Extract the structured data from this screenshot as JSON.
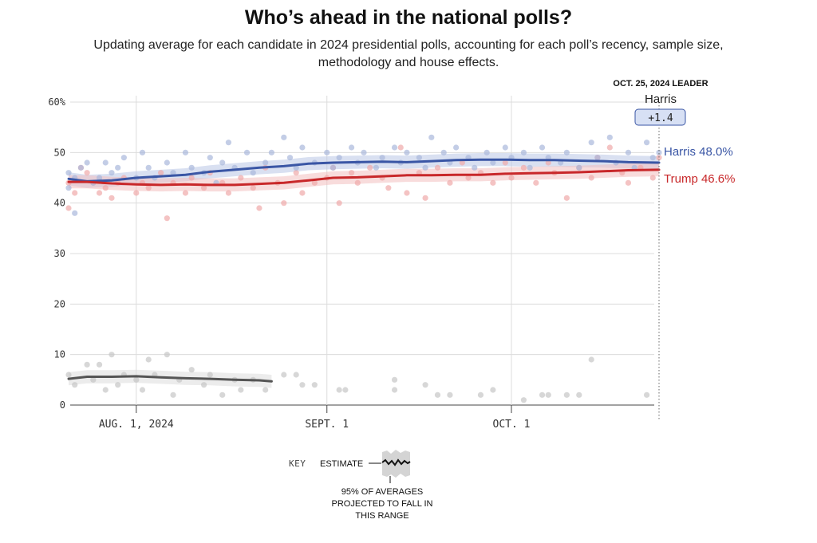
{
  "header": {
    "title": "Who’s ahead in the national polls?",
    "subtitle": "Updating average for each candidate in 2024 presidential polls, accounting for each poll’s recency, sample size, methodology and house effects."
  },
  "leader_box": {
    "date_label": "OCT. 25, 2024 LEADER",
    "name": "Harris",
    "margin": "+1.4"
  },
  "end_labels": {
    "harris": "Harris 48.0%",
    "trump": "Trump 46.6%"
  },
  "key": {
    "key_label": "KEY",
    "estimate_label": "ESTIMATE",
    "range_lines": [
      "95% OF AVERAGES",
      "PROJECTED TO FALL IN",
      "THIS RANGE"
    ]
  },
  "colors": {
    "harris": "#3a56a5",
    "trump": "#c8282a",
    "third": "#555555",
    "harris_dots": "#a9b8dc",
    "trump_dots": "#f0aaaa",
    "third_dots": "#c6c6c6",
    "grid": "#dcdcdc"
  },
  "chart_data": {
    "type": "line",
    "x_range": [
      "2024-07-21",
      "2024-10-25"
    ],
    "ylim": [
      0,
      60
    ],
    "y_ticks": [
      {
        "value": 0,
        "label": "0"
      },
      {
        "value": 10,
        "label": "10"
      },
      {
        "value": 20,
        "label": "20"
      },
      {
        "value": 30,
        "label": "30"
      },
      {
        "value": 40,
        "label": "40"
      },
      {
        "value": 50,
        "label": "50"
      },
      {
        "value": 60,
        "label": "60%"
      }
    ],
    "x_ticks": [
      {
        "date": "2024-08-01",
        "label": "AUG. 1, 2024"
      },
      {
        "date": "2024-09-01",
        "label": "SEPT. 1"
      },
      {
        "date": "2024-10-01",
        "label": "OCT. 1"
      }
    ],
    "grid": true,
    "series": [
      {
        "name": "Harris",
        "color_key": "harris",
        "points": [
          [
            "2024-07-21",
            44.8
          ],
          [
            "2024-07-24",
            44.3
          ],
          [
            "2024-07-28",
            44.5
          ],
          [
            "2024-08-01",
            45.0
          ],
          [
            "2024-08-05",
            45.3
          ],
          [
            "2024-08-09",
            45.6
          ],
          [
            "2024-08-13",
            46.2
          ],
          [
            "2024-08-17",
            46.6
          ],
          [
            "2024-08-21",
            47.0
          ],
          [
            "2024-08-25",
            47.3
          ],
          [
            "2024-08-29",
            47.8
          ],
          [
            "2024-09-02",
            48.0
          ],
          [
            "2024-09-06",
            48.1
          ],
          [
            "2024-09-10",
            48.2
          ],
          [
            "2024-09-14",
            48.1
          ],
          [
            "2024-09-18",
            48.3
          ],
          [
            "2024-09-22",
            48.5
          ],
          [
            "2024-09-26",
            48.6
          ],
          [
            "2024-09-30",
            48.6
          ],
          [
            "2024-10-04",
            48.5
          ],
          [
            "2024-10-08",
            48.5
          ],
          [
            "2024-10-12",
            48.4
          ],
          [
            "2024-10-16",
            48.3
          ],
          [
            "2024-10-20",
            48.1
          ],
          [
            "2024-10-25",
            48.0
          ]
        ]
      },
      {
        "name": "Trump",
        "color_key": "trump",
        "points": [
          [
            "2024-07-21",
            44.2
          ],
          [
            "2024-07-24",
            44.2
          ],
          [
            "2024-07-28",
            43.9
          ],
          [
            "2024-08-01",
            43.7
          ],
          [
            "2024-08-05",
            43.6
          ],
          [
            "2024-08-09",
            43.7
          ],
          [
            "2024-08-13",
            43.6
          ],
          [
            "2024-08-17",
            43.6
          ],
          [
            "2024-08-21",
            43.8
          ],
          [
            "2024-08-25",
            44.0
          ],
          [
            "2024-08-29",
            44.5
          ],
          [
            "2024-09-02",
            45.0
          ],
          [
            "2024-09-06",
            45.1
          ],
          [
            "2024-09-10",
            45.3
          ],
          [
            "2024-09-14",
            45.5
          ],
          [
            "2024-09-18",
            45.5
          ],
          [
            "2024-09-22",
            45.6
          ],
          [
            "2024-09-26",
            45.6
          ],
          [
            "2024-09-30",
            45.8
          ],
          [
            "2024-10-04",
            45.9
          ],
          [
            "2024-10-08",
            46.0
          ],
          [
            "2024-10-12",
            46.1
          ],
          [
            "2024-10-16",
            46.3
          ],
          [
            "2024-10-20",
            46.5
          ],
          [
            "2024-10-25",
            46.6
          ]
        ]
      },
      {
        "name": "",
        "color_key": "third",
        "points": [
          [
            "2024-07-21",
            5.2
          ],
          [
            "2024-07-24",
            5.6
          ],
          [
            "2024-07-28",
            5.6
          ],
          [
            "2024-08-01",
            5.7
          ],
          [
            "2024-08-05",
            5.5
          ],
          [
            "2024-08-09",
            5.3
          ],
          [
            "2024-08-13",
            5.2
          ],
          [
            "2024-08-17",
            5.0
          ],
          [
            "2024-08-21",
            4.9
          ],
          [
            "2024-08-23",
            4.7
          ]
        ]
      }
    ],
    "polls": {
      "harris": [
        [
          "2024-07-21",
          46
        ],
        [
          "2024-07-21",
          43
        ],
        [
          "2024-07-22",
          38
        ],
        [
          "2024-07-22",
          45
        ],
        [
          "2024-07-23",
          47
        ],
        [
          "2024-07-24",
          48
        ],
        [
          "2024-07-25",
          44
        ],
        [
          "2024-07-26",
          45
        ],
        [
          "2024-07-27",
          48
        ],
        [
          "2024-07-28",
          46
        ],
        [
          "2024-07-29",
          47
        ],
        [
          "2024-07-30",
          49
        ],
        [
          "2024-08-01",
          45
        ],
        [
          "2024-08-02",
          50
        ],
        [
          "2024-08-03",
          47
        ],
        [
          "2024-08-04",
          45
        ],
        [
          "2024-08-06",
          48
        ],
        [
          "2024-08-07",
          46
        ],
        [
          "2024-08-09",
          50
        ],
        [
          "2024-08-10",
          47
        ],
        [
          "2024-08-12",
          46
        ],
        [
          "2024-08-13",
          49
        ],
        [
          "2024-08-14",
          44
        ],
        [
          "2024-08-15",
          48
        ],
        [
          "2024-08-16",
          52
        ],
        [
          "2024-08-17",
          47
        ],
        [
          "2024-08-19",
          50
        ],
        [
          "2024-08-20",
          46
        ],
        [
          "2024-08-22",
          48
        ],
        [
          "2024-08-23",
          50
        ],
        [
          "2024-08-25",
          53
        ],
        [
          "2024-08-26",
          49
        ],
        [
          "2024-08-27",
          47
        ],
        [
          "2024-08-28",
          51
        ],
        [
          "2024-08-30",
          48
        ],
        [
          "2024-09-01",
          50
        ],
        [
          "2024-09-02",
          47
        ],
        [
          "2024-09-03",
          49
        ],
        [
          "2024-09-05",
          51
        ],
        [
          "2024-09-06",
          48
        ],
        [
          "2024-09-07",
          50
        ],
        [
          "2024-09-09",
          47
        ],
        [
          "2024-09-10",
          49
        ],
        [
          "2024-09-12",
          51
        ],
        [
          "2024-09-13",
          48
        ],
        [
          "2024-09-14",
          50
        ],
        [
          "2024-09-16",
          49
        ],
        [
          "2024-09-17",
          47
        ],
        [
          "2024-09-18",
          53
        ],
        [
          "2024-09-20",
          50
        ],
        [
          "2024-09-21",
          48
        ],
        [
          "2024-09-22",
          51
        ],
        [
          "2024-09-24",
          49
        ],
        [
          "2024-09-25",
          47
        ],
        [
          "2024-09-27",
          50
        ],
        [
          "2024-09-28",
          48
        ],
        [
          "2024-09-30",
          51
        ],
        [
          "2024-10-01",
          49
        ],
        [
          "2024-10-03",
          50
        ],
        [
          "2024-10-04",
          47
        ],
        [
          "2024-10-06",
          51
        ],
        [
          "2024-10-07",
          49
        ],
        [
          "2024-10-09",
          48
        ],
        [
          "2024-10-10",
          50
        ],
        [
          "2024-10-12",
          47
        ],
        [
          "2024-10-14",
          52
        ],
        [
          "2024-10-15",
          49
        ],
        [
          "2024-10-17",
          53
        ],
        [
          "2024-10-18",
          48
        ],
        [
          "2024-10-20",
          50
        ],
        [
          "2024-10-21",
          47
        ],
        [
          "2024-10-23",
          52
        ],
        [
          "2024-10-24",
          49
        ],
        [
          "2024-10-25",
          50
        ]
      ],
      "trump": [
        [
          "2024-07-21",
          39
        ],
        [
          "2024-07-21",
          44
        ],
        [
          "2024-07-22",
          42
        ],
        [
          "2024-07-23",
          47
        ],
        [
          "2024-07-24",
          46
        ],
        [
          "2024-07-25",
          44
        ],
        [
          "2024-07-26",
          42
        ],
        [
          "2024-07-27",
          43
        ],
        [
          "2024-07-28",
          41
        ],
        [
          "2024-07-29",
          44
        ],
        [
          "2024-07-30",
          45
        ],
        [
          "2024-08-01",
          42
        ],
        [
          "2024-08-02",
          44
        ],
        [
          "2024-08-03",
          43
        ],
        [
          "2024-08-05",
          46
        ],
        [
          "2024-08-06",
          37
        ],
        [
          "2024-08-07",
          44
        ],
        [
          "2024-08-09",
          42
        ],
        [
          "2024-08-10",
          45
        ],
        [
          "2024-08-12",
          43
        ],
        [
          "2024-08-13",
          46
        ],
        [
          "2024-08-15",
          44
        ],
        [
          "2024-08-16",
          42
        ],
        [
          "2024-08-18",
          45
        ],
        [
          "2024-08-20",
          43
        ],
        [
          "2024-08-21",
          39
        ],
        [
          "2024-08-22",
          47
        ],
        [
          "2024-08-24",
          44
        ],
        [
          "2024-08-25",
          40
        ],
        [
          "2024-08-27",
          46
        ],
        [
          "2024-08-28",
          42
        ],
        [
          "2024-08-30",
          44
        ],
        [
          "2024-09-01",
          45
        ],
        [
          "2024-09-02",
          47
        ],
        [
          "2024-09-03",
          40
        ],
        [
          "2024-09-05",
          46
        ],
        [
          "2024-09-06",
          44
        ],
        [
          "2024-09-08",
          47
        ],
        [
          "2024-09-10",
          45
        ],
        [
          "2024-09-11",
          43
        ],
        [
          "2024-09-13",
          51
        ],
        [
          "2024-09-14",
          42
        ],
        [
          "2024-09-16",
          46
        ],
        [
          "2024-09-17",
          41
        ],
        [
          "2024-09-19",
          47
        ],
        [
          "2024-09-21",
          44
        ],
        [
          "2024-09-23",
          48
        ],
        [
          "2024-09-24",
          45
        ],
        [
          "2024-09-26",
          46
        ],
        [
          "2024-09-28",
          44
        ],
        [
          "2024-09-30",
          48
        ],
        [
          "2024-10-01",
          45
        ],
        [
          "2024-10-03",
          47
        ],
        [
          "2024-10-05",
          44
        ],
        [
          "2024-10-07",
          48
        ],
        [
          "2024-10-08",
          46
        ],
        [
          "2024-10-10",
          41
        ],
        [
          "2024-10-12",
          47
        ],
        [
          "2024-10-14",
          45
        ],
        [
          "2024-10-15",
          49
        ],
        [
          "2024-10-17",
          51
        ],
        [
          "2024-10-19",
          46
        ],
        [
          "2024-10-20",
          44
        ],
        [
          "2024-10-22",
          47
        ],
        [
          "2024-10-24",
          45
        ],
        [
          "2024-10-25",
          49
        ]
      ],
      "third": [
        [
          "2024-07-21",
          6
        ],
        [
          "2024-07-22",
          4
        ],
        [
          "2024-07-24",
          8
        ],
        [
          "2024-07-25",
          5
        ],
        [
          "2024-07-26",
          8
        ],
        [
          "2024-07-27",
          3
        ],
        [
          "2024-07-28",
          10
        ],
        [
          "2024-07-29",
          4
        ],
        [
          "2024-07-30",
          6
        ],
        [
          "2024-08-01",
          5
        ],
        [
          "2024-08-02",
          3
        ],
        [
          "2024-08-03",
          9
        ],
        [
          "2024-08-04",
          6
        ],
        [
          "2024-08-06",
          10
        ],
        [
          "2024-08-07",
          2
        ],
        [
          "2024-08-08",
          5
        ],
        [
          "2024-08-10",
          7
        ],
        [
          "2024-08-12",
          4
        ],
        [
          "2024-08-13",
          6
        ],
        [
          "2024-08-15",
          2
        ],
        [
          "2024-08-17",
          5
        ],
        [
          "2024-08-18",
          3
        ],
        [
          "2024-08-20",
          5
        ],
        [
          "2024-08-22",
          3
        ],
        [
          "2024-08-25",
          6
        ],
        [
          "2024-08-27",
          6
        ],
        [
          "2024-08-28",
          4
        ],
        [
          "2024-08-30",
          4
        ],
        [
          "2024-09-03",
          3
        ],
        [
          "2024-09-04",
          3
        ],
        [
          "2024-09-12",
          3
        ],
        [
          "2024-09-12",
          5
        ],
        [
          "2024-09-17",
          4
        ],
        [
          "2024-09-19",
          2
        ],
        [
          "2024-09-21",
          2
        ],
        [
          "2024-09-26",
          2
        ],
        [
          "2024-09-28",
          3
        ],
        [
          "2024-10-03",
          1
        ],
        [
          "2024-10-06",
          2
        ],
        [
          "2024-10-07",
          2
        ],
        [
          "2024-10-10",
          2
        ],
        [
          "2024-10-12",
          2
        ],
        [
          "2024-10-14",
          9
        ],
        [
          "2024-10-23",
          2
        ]
      ]
    }
  }
}
